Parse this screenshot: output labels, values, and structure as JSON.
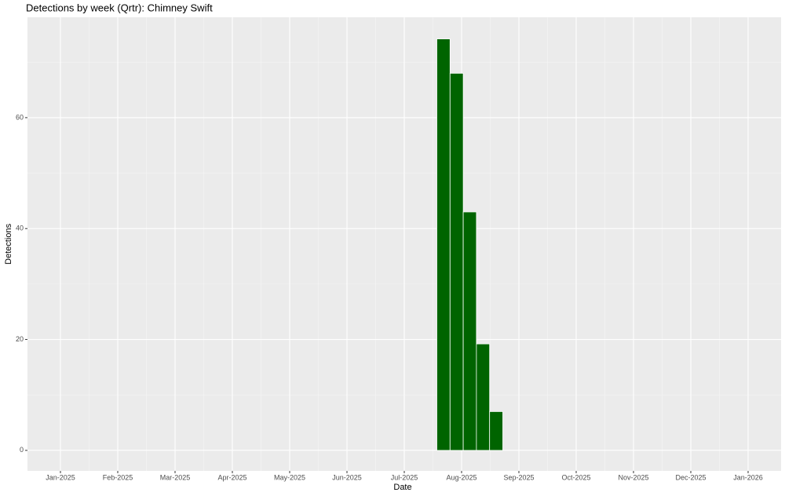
{
  "chart_data": {
    "type": "bar",
    "title": "Detections by week (Qrtr): Chimney Swift",
    "x_label": "Date",
    "y_label": "Detections",
    "categories": [
      null,
      null,
      null,
      null,
      null
    ],
    "values": [
      74.2,
      68,
      43,
      19.2,
      7
    ],
    "color": "#006400",
    "ylim": [
      -3.7,
      78.1
    ],
    "yticks": [
      0,
      20,
      40,
      60
    ],
    "xticks": [
      "Jan-2025",
      "Feb-2025",
      "Mar-2025",
      "Apr-2025",
      "May-2025",
      "Jun-2025",
      "Jul-2025",
      "Aug-2025",
      "Sep-2025",
      "Oct-2025",
      "Nov-2025",
      "Dec-2025",
      "Jan-2026"
    ],
    "grid": true
  }
}
